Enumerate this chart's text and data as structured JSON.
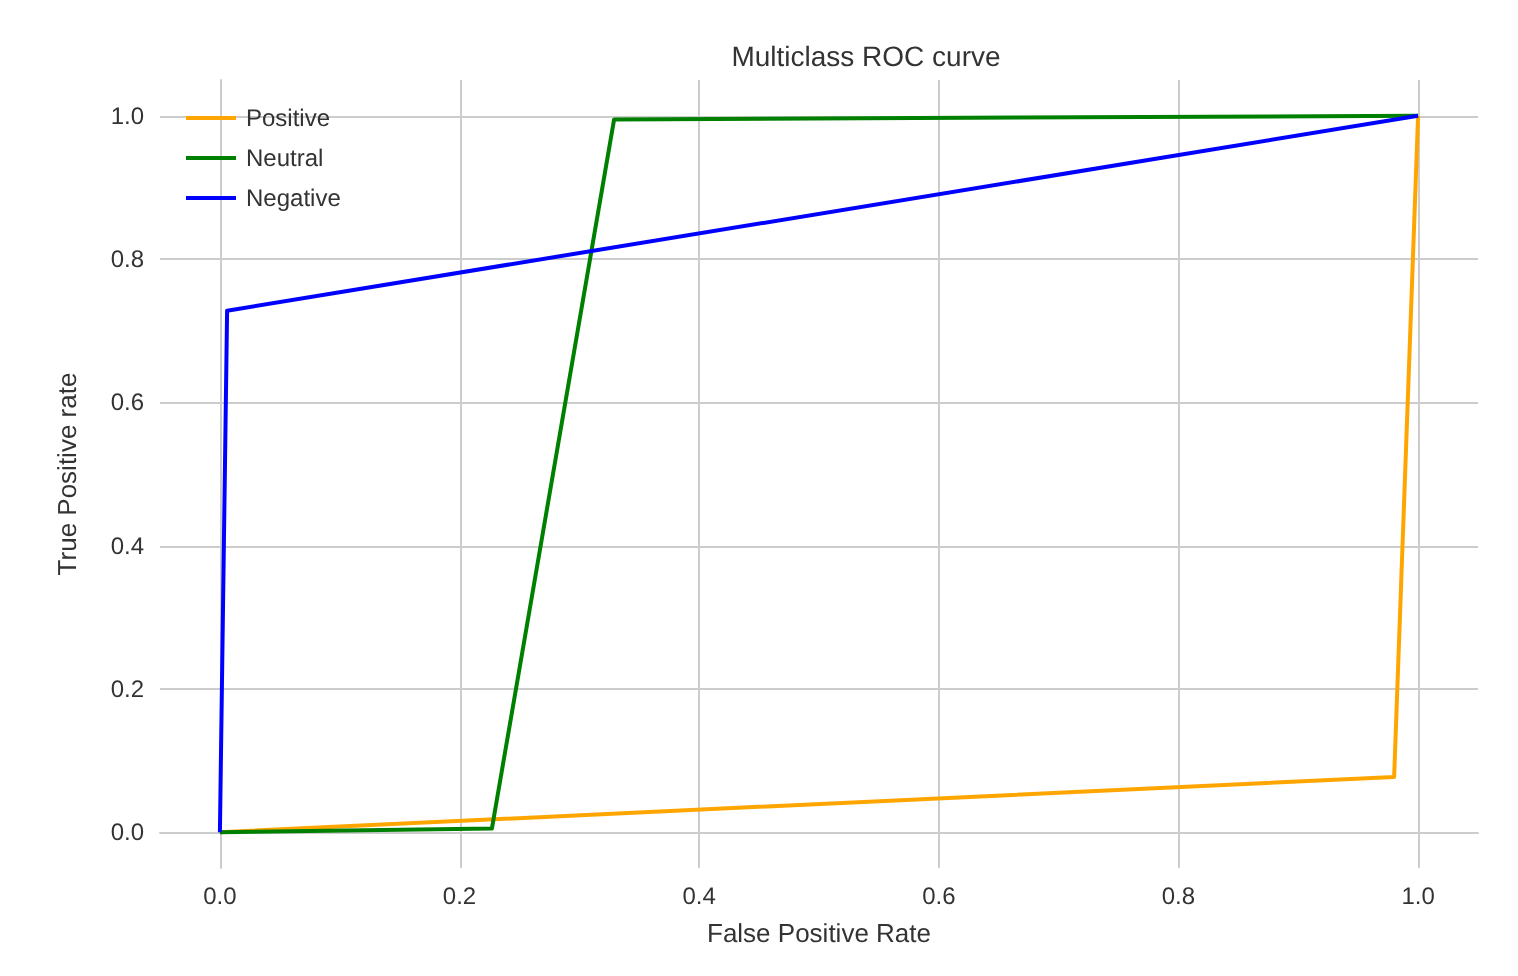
{
  "chart_data": {
    "type": "line",
    "title": "Multiclass ROC curve",
    "xlabel": "False Positive Rate",
    "ylabel": "True Positive rate",
    "xlim": [
      -0.05,
      1.05
    ],
    "ylim": [
      -0.05,
      1.05
    ],
    "xticks": [
      {
        "value": 0,
        "label": "0.0"
      },
      0.2,
      0.4,
      0.6,
      0.8,
      {
        "value": 1,
        "label": "1.0"
      }
    ],
    "yticks": [
      {
        "value": 0,
        "label": "0.0"
      },
      0.2,
      0.4,
      0.6,
      0.8,
      {
        "value": 1,
        "label": "1.0"
      }
    ],
    "grid": true,
    "legend": "top left",
    "marker": "none",
    "line_style": "solid",
    "series": [
      {
        "name": "Positive",
        "color": "#ffa500",
        "x": [
          0,
          0.98,
          1
        ],
        "values": [
          0,
          0.077,
          1
        ]
      },
      {
        "name": "Neutral",
        "color": "#008000",
        "x": [
          0,
          0.227,
          0.329,
          1
        ],
        "values": [
          0,
          0.005,
          0.995,
          1
        ]
      },
      {
        "name": "Negative",
        "color": "#0000ff",
        "x": [
          0,
          0.006,
          1
        ],
        "values": [
          0,
          0.728,
          1
        ]
      }
    ]
  }
}
